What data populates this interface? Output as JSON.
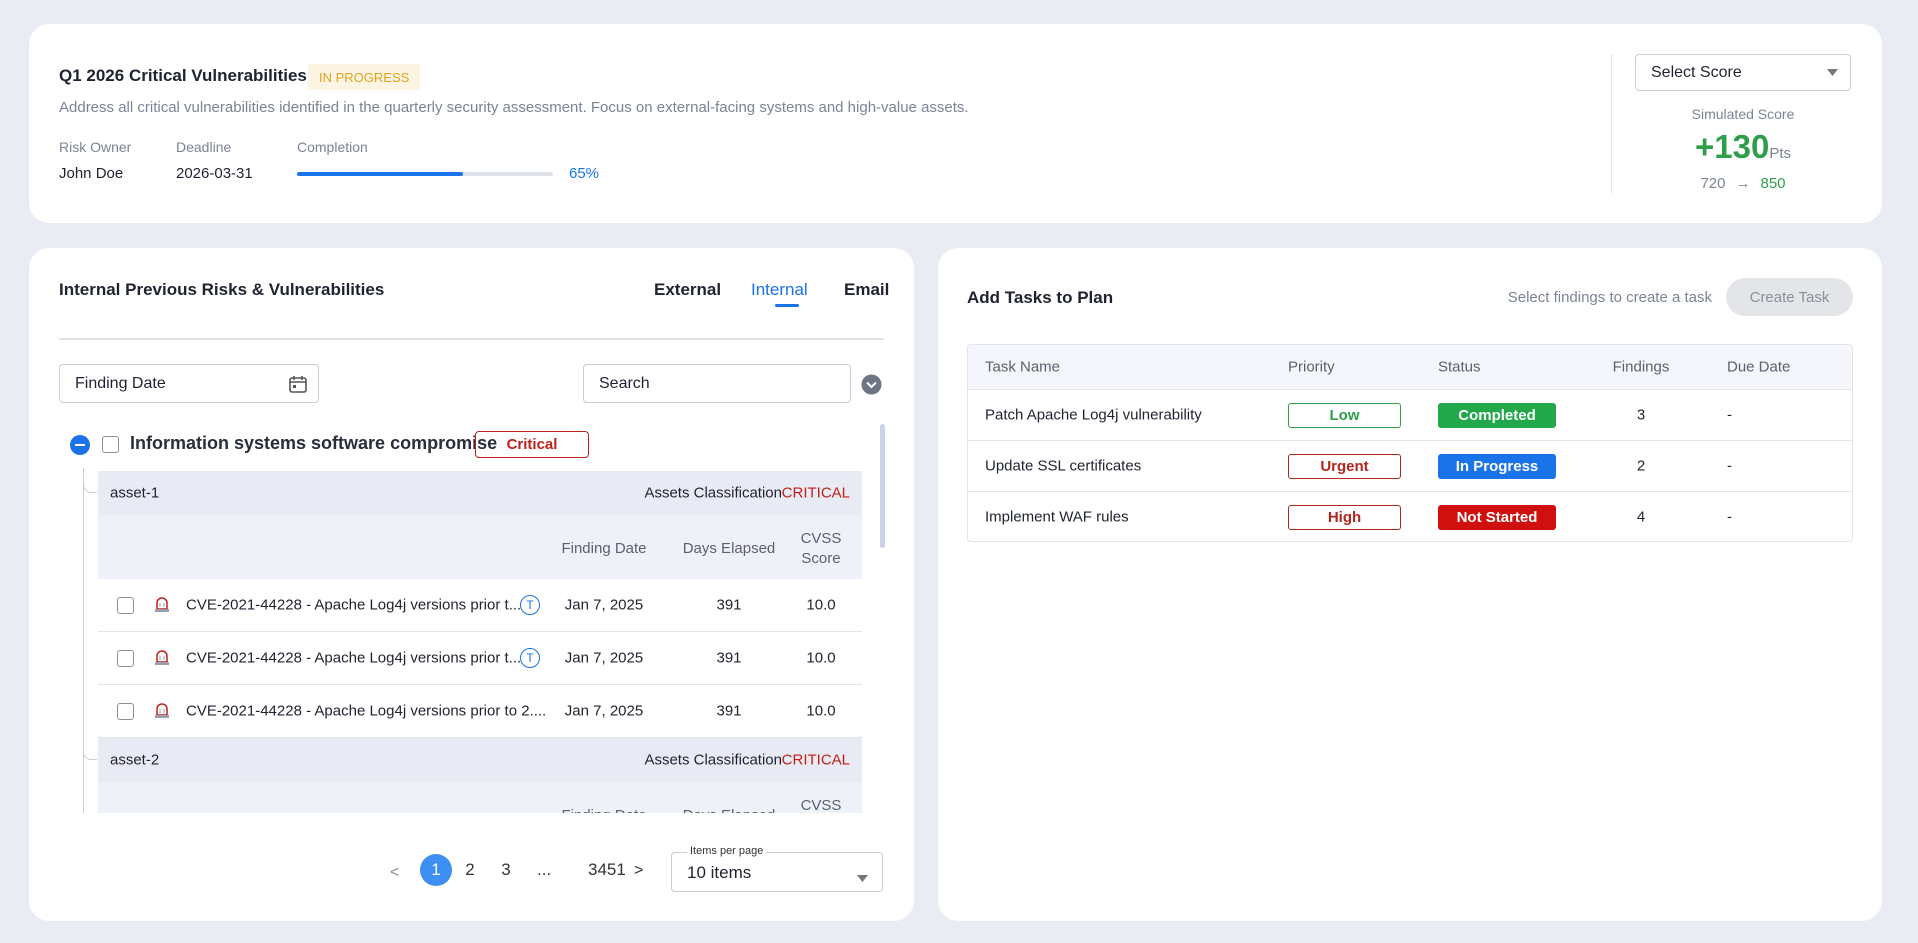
{
  "plan": {
    "title": "Q1 2026 Critical Vulnerabilities",
    "status": "IN PROGRESS",
    "description": "Address all critical vulnerabilities identified in the quarterly security assessment. Focus on external-facing systems and high-value assets.",
    "fields": [
      {
        "label": "Risk Owner",
        "value": "John Doe"
      },
      {
        "label": "Deadline",
        "value": "2026-03-31"
      }
    ],
    "completion": {
      "label": "Completion",
      "value": 65,
      "value_label": "65%"
    }
  },
  "score": {
    "select": "Select Score",
    "label": "Simulated Score",
    "delta": "+130",
    "unit": "Pts",
    "from": "720",
    "arrow": "→",
    "to": "850"
  },
  "findings": {
    "title": "Internal Previous Risks & Vulnerabilities",
    "tabs": [
      "External",
      "Internal",
      "Email"
    ],
    "active_tab": 1,
    "date_filter": "Finding Date",
    "search": "Search",
    "group": {
      "name": "Information systems software compromise",
      "severity": "Critical"
    },
    "assets": [
      {
        "name": "asset-1",
        "class_label": "Assets Classification",
        "class": "CRITICAL",
        "columns": [
          "Finding Date",
          "Days Elapsed",
          "CVSS Score"
        ],
        "rows": [
          {
            "title": "CVE-2021-44228 - Apache Log4j versions prior t...",
            "tag": "T",
            "date": "Jan 7, 2025",
            "days": "391",
            "cvss": "10.0"
          },
          {
            "title": "CVE-2021-44228 - Apache Log4j versions prior t...",
            "tag": "T",
            "date": "Jan 7, 2025",
            "days": "391",
            "cvss": "10.0"
          },
          {
            "title": "CVE-2021-44228 - Apache Log4j versions prior to 2....",
            "date": "Jan 7, 2025",
            "days": "391",
            "cvss": "10.0"
          }
        ]
      },
      {
        "name": "asset-2",
        "class_label": "Assets Classification",
        "class": "CRITICAL",
        "columns": [
          "Finding Date",
          "Days Elapsed",
          "CVSS Score"
        ],
        "rows": []
      }
    ],
    "pagination": {
      "prev": "<",
      "pages": [
        "1",
        "2",
        "3",
        "...",
        "3451"
      ],
      "current": 0,
      "next": ">",
      "items_label": "Items per page",
      "items": "10 items"
    }
  },
  "tasks": {
    "title": "Add Tasks to Plan",
    "hint": "Select findings to create a task",
    "button": "Create Task",
    "columns": [
      "Task Name",
      "Priority",
      "Status",
      "Findings",
      "Due Date"
    ],
    "rows": [
      {
        "name": "Patch Apache Log4j vulnerability",
        "priority": "Low",
        "priority_color": "#2e9e4b",
        "status": "Completed",
        "status_color": "#22a84a",
        "findings": "3",
        "due": "-"
      },
      {
        "name": "Update SSL certificates",
        "priority": "Urgent",
        "priority_color": "#b3261e",
        "status": "In Progress",
        "status_color": "#1a73e8",
        "findings": "2",
        "due": "-"
      },
      {
        "name": "Implement WAF rules",
        "priority": "High",
        "priority_color": "#b3261e",
        "status": "Not Started",
        "status_color": "#d0100f",
        "findings": "4",
        "due": "-"
      }
    ]
  }
}
